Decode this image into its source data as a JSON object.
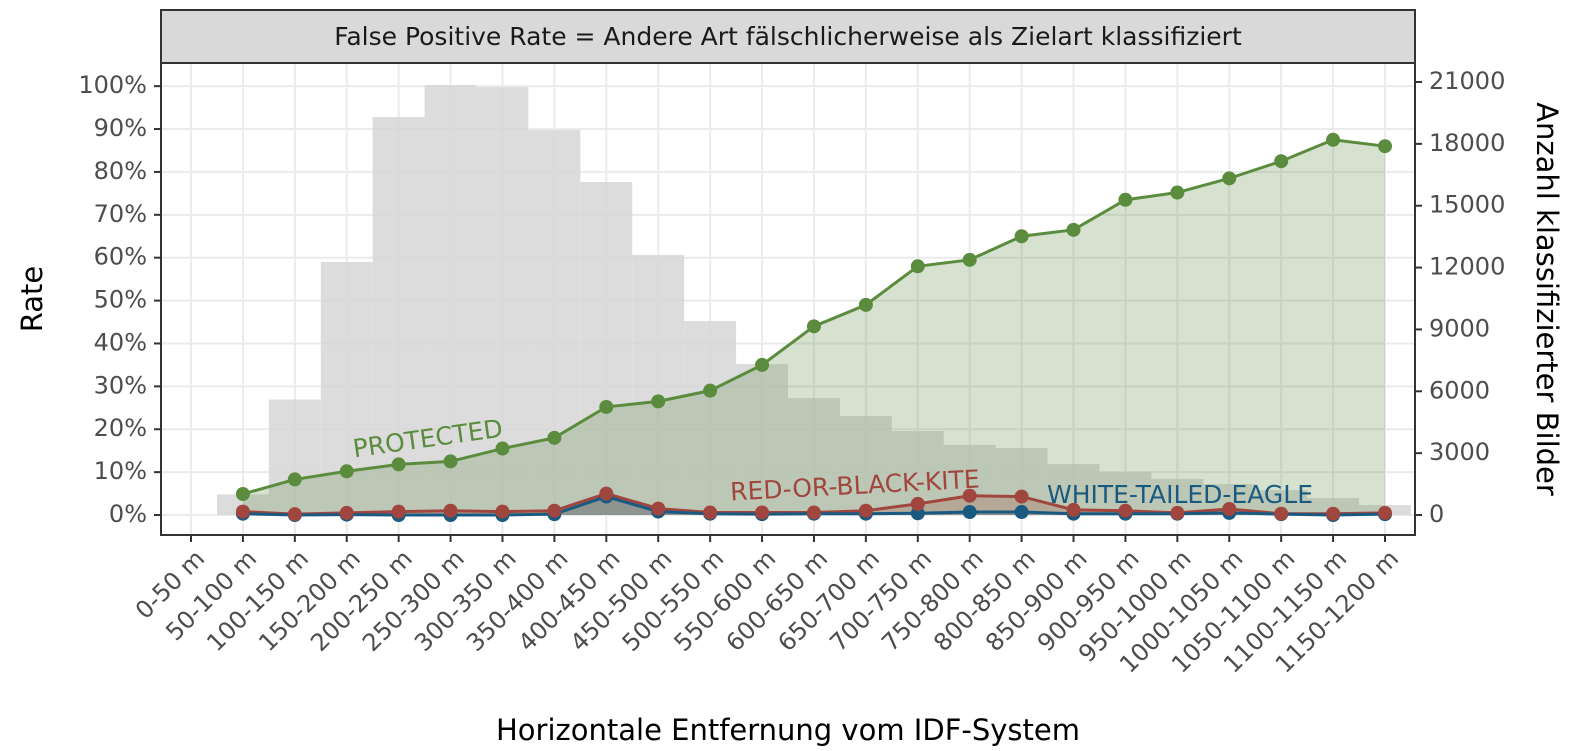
{
  "chart_data": {
    "type": "line",
    "title": "False Positive Rate = Andere Art fälschlicherweise als Zielart klassifiziert",
    "xlabel": "Horizontale Entfernung vom IDF-System",
    "ylabel": "Rate",
    "y2label": "Anzahl klassifizierter Bilder",
    "categories": [
      "0-50 m",
      "50-100 m",
      "100-150 m",
      "150-200 m",
      "200-250 m",
      "250-300 m",
      "300-350 m",
      "350-400 m",
      "400-450 m",
      "450-500 m",
      "500-550 m",
      "550-600 m",
      "600-650 m",
      "650-700 m",
      "700-750 m",
      "750-800 m",
      "800-850 m",
      "850-900 m",
      "900-950 m",
      "950-1000 m",
      "1000-1050 m",
      "1050-1100 m",
      "1100-1150 m",
      "1150-1200 m"
    ],
    "series": [
      {
        "type": "bar",
        "axis": "y2",
        "color": "#d6d6d6",
        "values": [
          null,
          1000,
          5600,
          12270,
          19300,
          20850,
          20750,
          18670,
          16150,
          12610,
          9410,
          7320,
          5670,
          4800,
          4070,
          3400,
          3250,
          2470,
          2090,
          1750,
          1500,
          1210,
          820,
          480
        ]
      },
      {
        "name": "PROTECTED",
        "color": "#5b8c3e",
        "values": [
          null,
          4.9,
          8.3,
          10.2,
          11.8,
          12.5,
          15.5,
          18,
          25.2,
          26.5,
          29,
          35,
          44,
          49,
          58,
          59.5,
          65,
          66.5,
          73.5,
          75.2,
          78.5,
          82.5,
          87.5,
          86
        ]
      },
      {
        "name": "RED-OR-BLACK-KITE",
        "color": "#a0463e",
        "values": [
          null,
          0.8,
          0.2,
          0.5,
          0.8,
          1,
          0.8,
          1,
          5,
          1.5,
          0.6,
          0.6,
          0.6,
          1,
          2.6,
          4.5,
          4.3,
          1.2,
          1,
          0.5,
          1.4,
          0.3,
          0.3,
          0.5
        ]
      },
      {
        "name": "WHITE-TAILED-EAGLE",
        "color": "#1a5a80",
        "values": [
          null,
          0.3,
          0,
          0.1,
          0,
          0,
          0,
          0.2,
          4.3,
          0.8,
          0.3,
          0.2,
          0.3,
          0.3,
          0.4,
          0.7,
          0.7,
          0.3,
          0.3,
          0.3,
          0.5,
          0.2,
          0,
          0.2
        ]
      }
    ],
    "ylim": [
      -4.66,
      105.4
    ],
    "yticks": [
      {
        "value": 0,
        "label": "0%"
      },
      {
        "value": 10,
        "label": "10%"
      },
      {
        "value": 20,
        "label": "20%"
      },
      {
        "value": 30,
        "label": "30%"
      },
      {
        "value": 40,
        "label": "40%"
      },
      {
        "value": 50,
        "label": "50%"
      },
      {
        "value": 60,
        "label": "60%"
      },
      {
        "value": 70,
        "label": "70%"
      },
      {
        "value": 80,
        "label": "80%"
      },
      {
        "value": 90,
        "label": "90%"
      },
      {
        "value": 100,
        "label": "100%"
      }
    ],
    "y2lim": [
      -970,
      21922
    ],
    "y2ticks": [
      0,
      3000,
      6000,
      9000,
      12000,
      15000,
      18000,
      21000
    ],
    "grid": true
  }
}
